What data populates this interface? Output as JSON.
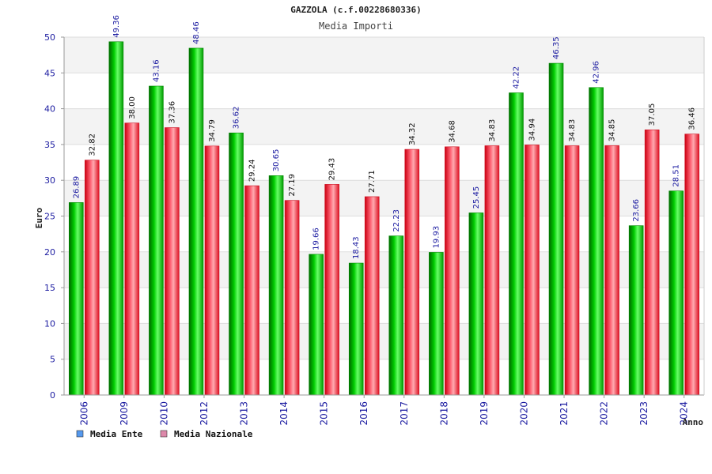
{
  "chart_data": {
    "type": "bar",
    "title": "GAZZOLA (c.f.00228680336)",
    "subtitle": "Media Importi",
    "xlabel": "Anno",
    "ylabel": "Euro",
    "ylim": [
      0,
      50
    ],
    "yticks": [
      0,
      5,
      10,
      15,
      20,
      25,
      30,
      35,
      40,
      45,
      50
    ],
    "grid": true,
    "legend_position": "bottom-left",
    "categories": [
      "2006",
      "2009",
      "2010",
      "2012",
      "2013",
      "2014",
      "2015",
      "2016",
      "2017",
      "2018",
      "2019",
      "2020",
      "2021",
      "2022",
      "2023",
      "2024"
    ],
    "series": [
      {
        "name": "Media Ente",
        "color": "#00bb00",
        "legend_color": "#5599ee",
        "values": [
          26.89,
          49.36,
          43.16,
          48.46,
          36.62,
          30.65,
          19.66,
          18.43,
          22.23,
          19.93,
          25.45,
          42.22,
          46.35,
          42.96,
          23.66,
          28.51
        ],
        "labels": [
          "26.89",
          "49.36",
          "43.16",
          "48.46",
          "36.62",
          "30.65",
          "19.66",
          "18.43",
          "22.23",
          "19.93",
          "25.45",
          "42.22",
          "46.35",
          "42.96",
          "23.66",
          "28.51"
        ]
      },
      {
        "name": "Media Nazionale",
        "color": "#ee2233",
        "legend_color": "#dd88aa",
        "values": [
          32.82,
          38.0,
          37.36,
          34.79,
          29.24,
          27.19,
          29.43,
          27.71,
          34.32,
          34.68,
          34.83,
          34.94,
          34.83,
          34.85,
          37.05,
          36.46
        ],
        "labels": [
          "32.82",
          "38.00",
          "37.36",
          "34.79",
          "29.24",
          "27.19",
          "29.43",
          "27.71",
          "34.32",
          "34.68",
          "34.83",
          "34.94",
          "34.83",
          "34.85",
          "37.05",
          "36.46"
        ]
      }
    ],
    "colors": {
      "ytick": "#1a1aa0",
      "label_ente": "#1a1aa0",
      "label_naz": "#111111",
      "band_light": "#f3f3f3",
      "band_white": "#ffffff",
      "grid": "#dddddd"
    }
  }
}
